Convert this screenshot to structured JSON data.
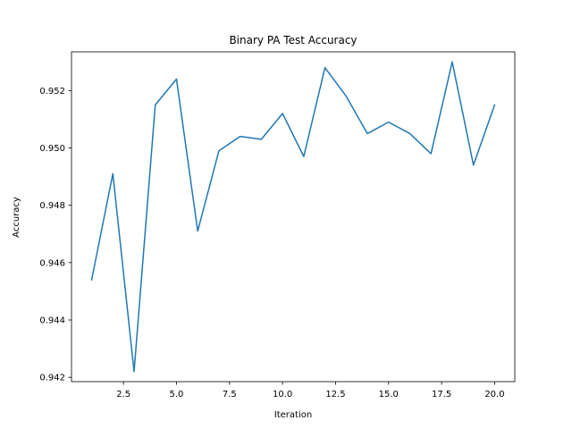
{
  "chart_data": {
    "type": "line",
    "title": "Binary PA Test Accuracy",
    "xlabel": "Iteration",
    "ylabel": "Accuracy",
    "xlim": [
      0.05,
      20.95
    ],
    "ylim": [
      0.94185,
      0.95335
    ],
    "grid": false,
    "x_ticks": [
      2.5,
      5.0,
      7.5,
      10.0,
      12.5,
      15.0,
      17.5,
      20.0
    ],
    "x_tick_labels": [
      "2.5",
      "5.0",
      "7.5",
      "10.0",
      "12.5",
      "15.0",
      "17.5",
      "20.0"
    ],
    "y_ticks": [
      0.942,
      0.944,
      0.946,
      0.948,
      0.95,
      0.952
    ],
    "y_tick_labels": [
      "0.942",
      "0.944",
      "0.946",
      "0.948",
      "0.950",
      "0.952"
    ],
    "series": [
      {
        "color": "#1f77b4",
        "x": [
          1,
          2,
          3,
          4,
          5,
          6,
          7,
          8,
          9,
          10,
          11,
          12,
          13,
          14,
          15,
          16,
          17,
          18,
          19,
          20
        ],
        "values": [
          0.9454,
          0.9491,
          0.9422,
          0.9515,
          0.9524,
          0.9471,
          0.9499,
          0.9504,
          0.9503,
          0.9512,
          0.9497,
          0.9528,
          0.9518,
          0.9505,
          0.9509,
          0.9505,
          0.9498,
          0.953,
          0.9494,
          0.9515
        ]
      }
    ]
  }
}
